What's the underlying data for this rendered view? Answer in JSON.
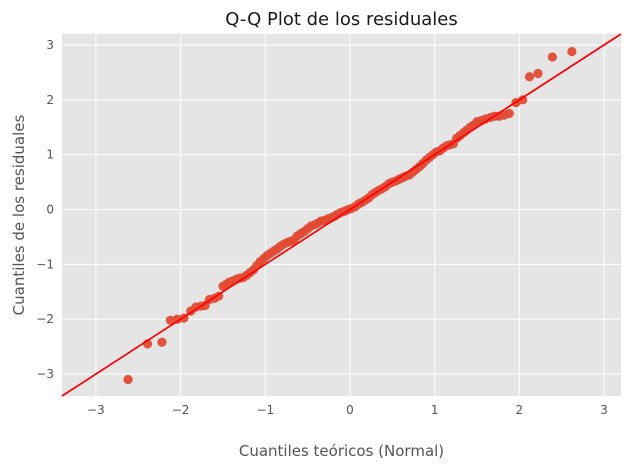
{
  "chart_data": {
    "type": "scatter",
    "title": "Q-Q Plot de los residuales",
    "xlabel": "Cuantiles teóricos (Normal)",
    "ylabel": "Cuantiles de los residuales",
    "xlim": [
      -3.4,
      3.2
    ],
    "ylim": [
      -3.4,
      3.2
    ],
    "xticks": [
      -3,
      -2,
      -1,
      0,
      1,
      2,
      3
    ],
    "yticks": [
      -3,
      -2,
      -1,
      0,
      1,
      2,
      3
    ],
    "xtick_labels": [
      "−3",
      "−2",
      "−1",
      "0",
      "1",
      "2",
      "3"
    ],
    "ytick_labels": [
      "−3",
      "−2",
      "−1",
      "0",
      "1",
      "2",
      "3"
    ],
    "grid": true,
    "legend": "none",
    "colors": {
      "background": "#e5e5e5",
      "grid": "#ffffff",
      "points": "#e24a33",
      "line": "#ff0000"
    },
    "reference_line": {
      "slope": 1,
      "intercept": 0
    },
    "series": [
      {
        "kind": "points",
        "x": [
          -2.62,
          -2.39,
          -2.22,
          -2.12,
          -2.04,
          -1.96,
          -1.88,
          -1.82,
          -1.76,
          -1.71,
          -1.66,
          -1.6,
          -1.55,
          -1.5,
          -1.46,
          -1.42,
          -1.38,
          -1.34,
          -1.3,
          -1.26,
          -1.22,
          -1.18,
          -1.14,
          -1.1,
          -1.06,
          -1.02,
          -0.98,
          -0.94,
          -0.9,
          -0.86,
          -0.82,
          -0.78,
          -0.74,
          -0.7,
          -0.66,
          -0.62,
          -0.58,
          -0.54,
          -0.5,
          -0.46,
          -0.42,
          -0.38,
          -0.34,
          -0.3,
          -0.26,
          -0.22,
          -0.18,
          -0.14,
          -0.1,
          -0.06,
          -0.02,
          0.02,
          0.06,
          0.1,
          0.14,
          0.18,
          0.22,
          0.26,
          0.3,
          0.34,
          0.38,
          0.42,
          0.46,
          0.5,
          0.54,
          0.58,
          0.62,
          0.66,
          0.7,
          0.74,
          0.78,
          0.82,
          0.86,
          0.9,
          0.94,
          0.98,
          1.02,
          1.06,
          1.1,
          1.14,
          1.18,
          1.22,
          1.26,
          1.3,
          1.34,
          1.38,
          1.42,
          1.46,
          1.5,
          1.55,
          1.6,
          1.66,
          1.71,
          1.76,
          1.82,
          1.88,
          1.96,
          2.04,
          2.12,
          2.22,
          2.39,
          2.62
        ],
        "y": [
          -3.1,
          -2.45,
          -2.42,
          -2.02,
          -2.0,
          -1.98,
          -1.85,
          -1.78,
          -1.76,
          -1.75,
          -1.64,
          -1.62,
          -1.58,
          -1.4,
          -1.36,
          -1.32,
          -1.3,
          -1.27,
          -1.25,
          -1.24,
          -1.2,
          -1.15,
          -1.1,
          -1.02,
          -0.95,
          -0.9,
          -0.84,
          -0.8,
          -0.76,
          -0.72,
          -0.67,
          -0.63,
          -0.6,
          -0.58,
          -0.55,
          -0.48,
          -0.44,
          -0.4,
          -0.35,
          -0.3,
          -0.28,
          -0.25,
          -0.21,
          -0.2,
          -0.17,
          -0.15,
          -0.12,
          -0.08,
          -0.05,
          -0.03,
          0.0,
          0.02,
          0.05,
          0.1,
          0.13,
          0.17,
          0.21,
          0.27,
          0.31,
          0.35,
          0.38,
          0.42,
          0.47,
          0.5,
          0.52,
          0.55,
          0.58,
          0.61,
          0.63,
          0.68,
          0.73,
          0.78,
          0.84,
          0.9,
          0.95,
          1.0,
          1.05,
          1.07,
          1.12,
          1.16,
          1.18,
          1.2,
          1.3,
          1.35,
          1.4,
          1.45,
          1.5,
          1.54,
          1.6,
          1.62,
          1.65,
          1.68,
          1.7,
          1.7,
          1.72,
          1.75,
          1.95,
          2.0,
          2.42,
          2.48,
          2.78,
          2.88
        ]
      }
    ]
  }
}
